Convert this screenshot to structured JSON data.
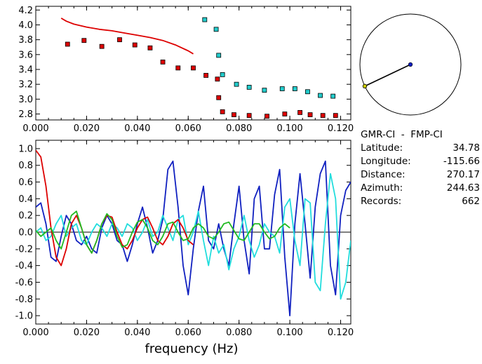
{
  "info": {
    "pair": "GMR-CI  -  FMP-CI",
    "latitude_label": "Latitude:",
    "latitude": "34.78",
    "longitude_label": "Longitude:",
    "longitude": "-115.66",
    "distance_label": "Distance:",
    "distance": "270.17",
    "azimuth_label": "Azimuth:",
    "azimuth": "244.63",
    "records_label": "Records:",
    "records": "662"
  },
  "chart_data": [
    {
      "type": "scatter",
      "xlim": [
        0.0,
        0.124
      ],
      "ylim": [
        2.72,
        4.25
      ],
      "x_ticks": [
        "0.000",
        "0.020",
        "0.040",
        "0.060",
        "0.080",
        "0.100",
        "0.120"
      ],
      "y_ticks": [
        "2.8",
        "3.0",
        "3.2",
        "3.4",
        "3.6",
        "3.8",
        "4.0",
        "4.2"
      ],
      "series": [
        {
          "color": "#dd0000",
          "mode": "line",
          "x": [
            0.01,
            0.012,
            0.015,
            0.02,
            0.025,
            0.03,
            0.035,
            0.04,
            0.045,
            0.05,
            0.055,
            0.06,
            0.062
          ],
          "y": [
            4.09,
            4.05,
            4.01,
            3.97,
            3.94,
            3.92,
            3.89,
            3.86,
            3.83,
            3.79,
            3.73,
            3.65,
            3.61
          ]
        },
        {
          "color": "#dd0000",
          "mode": "markers",
          "x": [
            0.0125,
            0.019,
            0.026,
            0.033,
            0.039,
            0.045,
            0.05,
            0.056,
            0.062,
            0.067,
            0.0715,
            0.072,
            0.0735,
            0.078,
            0.084,
            0.091,
            0.098,
            0.104,
            0.108,
            0.113,
            0.118
          ],
          "y": [
            3.74,
            3.79,
            3.71,
            3.8,
            3.73,
            3.69,
            3.5,
            3.42,
            3.42,
            3.32,
            3.27,
            3.02,
            2.83,
            2.79,
            2.78,
            2.77,
            2.8,
            2.82,
            2.79,
            2.78,
            2.78
          ]
        },
        {
          "color": "#22cccc",
          "mode": "markers",
          "x": [
            0.0665,
            0.071,
            0.072,
            0.0735,
            0.079,
            0.084,
            0.09,
            0.097,
            0.102,
            0.107,
            0.112,
            0.117
          ],
          "y": [
            4.07,
            3.94,
            3.59,
            3.33,
            3.2,
            3.16,
            3.12,
            3.14,
            3.14,
            3.1,
            3.05,
            3.04
          ]
        }
      ]
    },
    {
      "type": "line",
      "xlim": [
        0.0,
        0.124
      ],
      "ylim": [
        -1.1,
        1.1
      ],
      "x_ticks": [
        "0.000",
        "0.020",
        "0.040",
        "0.060",
        "0.080",
        "0.100",
        "0.120"
      ],
      "y_ticks": [
        "-1.0",
        "-0.8",
        "-0.6",
        "-0.4",
        "-0.2",
        "0.0",
        "0.2",
        "0.4",
        "0.6",
        "0.8",
        "1.0"
      ],
      "xlabel": "frequency (Hz)",
      "series": [
        {
          "color": "#1020c0",
          "x": [
            0.0,
            0.002,
            0.004,
            0.006,
            0.008,
            0.01,
            0.012,
            0.014,
            0.016,
            0.018,
            0.02,
            0.022,
            0.024,
            0.026,
            0.028,
            0.03,
            0.032,
            0.034,
            0.036,
            0.038,
            0.04,
            0.042,
            0.044,
            0.046,
            0.048,
            0.05,
            0.052,
            0.054,
            0.056,
            0.058,
            0.06,
            0.062,
            0.064,
            0.066,
            0.068,
            0.07,
            0.072,
            0.074,
            0.076,
            0.078,
            0.08,
            0.082,
            0.084,
            0.086,
            0.088,
            0.09,
            0.092,
            0.094,
            0.096,
            0.098,
            0.1,
            0.102,
            0.104,
            0.106,
            0.108,
            0.11,
            0.112,
            0.114,
            0.116,
            0.118,
            0.12,
            0.122,
            0.124
          ],
          "y": [
            0.3,
            0.35,
            0.1,
            -0.3,
            -0.35,
            -0.05,
            0.2,
            0.1,
            -0.1,
            -0.15,
            -0.05,
            -0.2,
            -0.25,
            0.05,
            0.2,
            0.1,
            -0.1,
            -0.15,
            -0.35,
            -0.15,
            0.1,
            0.3,
            0.05,
            -0.25,
            -0.1,
            0.15,
            0.75,
            0.85,
            0.3,
            -0.4,
            -0.75,
            -0.2,
            0.25,
            0.55,
            -0.1,
            -0.2,
            0.1,
            -0.2,
            -0.4,
            0.1,
            0.55,
            -0.1,
            -0.5,
            0.4,
            0.55,
            -0.2,
            -0.2,
            0.45,
            0.75,
            -0.3,
            -1.0,
            0.1,
            0.7,
            0.1,
            -0.55,
            0.3,
            0.7,
            0.85,
            -0.4,
            -0.75,
            0.2,
            0.5,
            0.6
          ]
        },
        {
          "color": "#22dddd",
          "x": [
            0.0,
            0.002,
            0.004,
            0.006,
            0.008,
            0.01,
            0.012,
            0.014,
            0.016,
            0.018,
            0.02,
            0.022,
            0.024,
            0.026,
            0.028,
            0.03,
            0.032,
            0.034,
            0.036,
            0.038,
            0.04,
            0.042,
            0.044,
            0.046,
            0.048,
            0.05,
            0.052,
            0.054,
            0.056,
            0.058,
            0.06,
            0.062,
            0.064,
            0.066,
            0.068,
            0.07,
            0.072,
            0.074,
            0.076,
            0.078,
            0.08,
            0.082,
            0.084,
            0.086,
            0.088,
            0.09,
            0.092,
            0.094,
            0.096,
            0.098,
            0.1,
            0.102,
            0.104,
            0.106,
            0.108,
            0.11,
            0.112,
            0.114,
            0.116,
            0.118,
            0.12,
            0.122,
            0.124
          ],
          "y": [
            0.0,
            0.05,
            -0.1,
            -0.05,
            0.1,
            0.2,
            -0.05,
            0.05,
            0.1,
            -0.1,
            -0.15,
            0.0,
            0.1,
            0.05,
            -0.05,
            0.1,
            0.05,
            -0.05,
            0.1,
            0.05,
            -0.1,
            0.0,
            0.15,
            -0.05,
            0.0,
            0.2,
            0.05,
            -0.1,
            0.15,
            0.2,
            -0.15,
            0.0,
            0.25,
            -0.1,
            -0.4,
            -0.05,
            -0.25,
            -0.15,
            -0.45,
            -0.2,
            -0.05,
            0.2,
            -0.1,
            -0.3,
            -0.15,
            0.1,
            0.0,
            -0.05,
            -0.25,
            0.3,
            0.4,
            -0.1,
            -0.4,
            0.4,
            0.35,
            -0.6,
            -0.7,
            0.1,
            0.7,
            0.4,
            -0.8,
            -0.6,
            -0.1
          ]
        },
        {
          "color": "#dd0000",
          "x": [
            0.0,
            0.002,
            0.004,
            0.006,
            0.008,
            0.01,
            0.012,
            0.014,
            0.016,
            0.018,
            0.02,
            0.022,
            0.024,
            0.026,
            0.028,
            0.03,
            0.032,
            0.034,
            0.036,
            0.038,
            0.04,
            0.042,
            0.044,
            0.046,
            0.048,
            0.05,
            0.052,
            0.054,
            0.056,
            0.058,
            0.06,
            0.062
          ],
          "y": [
            0.98,
            0.9,
            0.55,
            0.05,
            -0.3,
            -0.4,
            -0.2,
            0.1,
            0.2,
            0.05,
            -0.15,
            -0.25,
            -0.1,
            0.1,
            0.2,
            0.18,
            0.0,
            -0.15,
            -0.2,
            -0.1,
            0.05,
            0.15,
            0.18,
            0.05,
            -0.1,
            -0.15,
            -0.05,
            0.1,
            0.15,
            0.05,
            -0.1,
            -0.15
          ]
        },
        {
          "color": "#22bb22",
          "x": [
            0.0,
            0.002,
            0.004,
            0.006,
            0.008,
            0.01,
            0.012,
            0.014,
            0.016,
            0.018,
            0.02,
            0.022,
            0.024,
            0.026,
            0.028,
            0.03,
            0.032,
            0.034,
            0.036,
            0.038,
            0.04,
            0.042,
            0.044,
            0.046,
            0.048,
            0.05,
            0.052,
            0.054,
            0.056,
            0.058,
            0.06,
            0.062,
            0.064,
            0.066,
            0.068,
            0.07,
            0.072,
            0.074,
            0.076,
            0.078,
            0.08,
            0.082,
            0.084,
            0.086,
            0.088,
            0.09,
            0.092,
            0.094,
            0.096,
            0.098,
            0.1
          ],
          "y": [
            0.02,
            -0.05,
            0.0,
            0.05,
            -0.1,
            -0.2,
            0.0,
            0.2,
            0.25,
            0.05,
            -0.15,
            -0.25,
            -0.1,
            0.1,
            0.22,
            0.15,
            -0.05,
            -0.18,
            -0.15,
            0.0,
            0.12,
            0.15,
            0.05,
            -0.1,
            -0.15,
            -0.05,
            0.1,
            0.12,
            0.0,
            -0.1,
            -0.08,
            0.05,
            0.1,
            0.05,
            -0.05,
            -0.08,
            0.0,
            0.1,
            0.12,
            0.02,
            -0.08,
            -0.1,
            0.0,
            0.1,
            0.1,
            0.0,
            -0.08,
            -0.05,
            0.05,
            0.1,
            0.05
          ]
        }
      ]
    },
    {
      "type": "diagram",
      "azimuth": 244.63,
      "colors": {
        "line": "#000000",
        "station": "#1020c0",
        "event": "#cccc00"
      }
    }
  ]
}
